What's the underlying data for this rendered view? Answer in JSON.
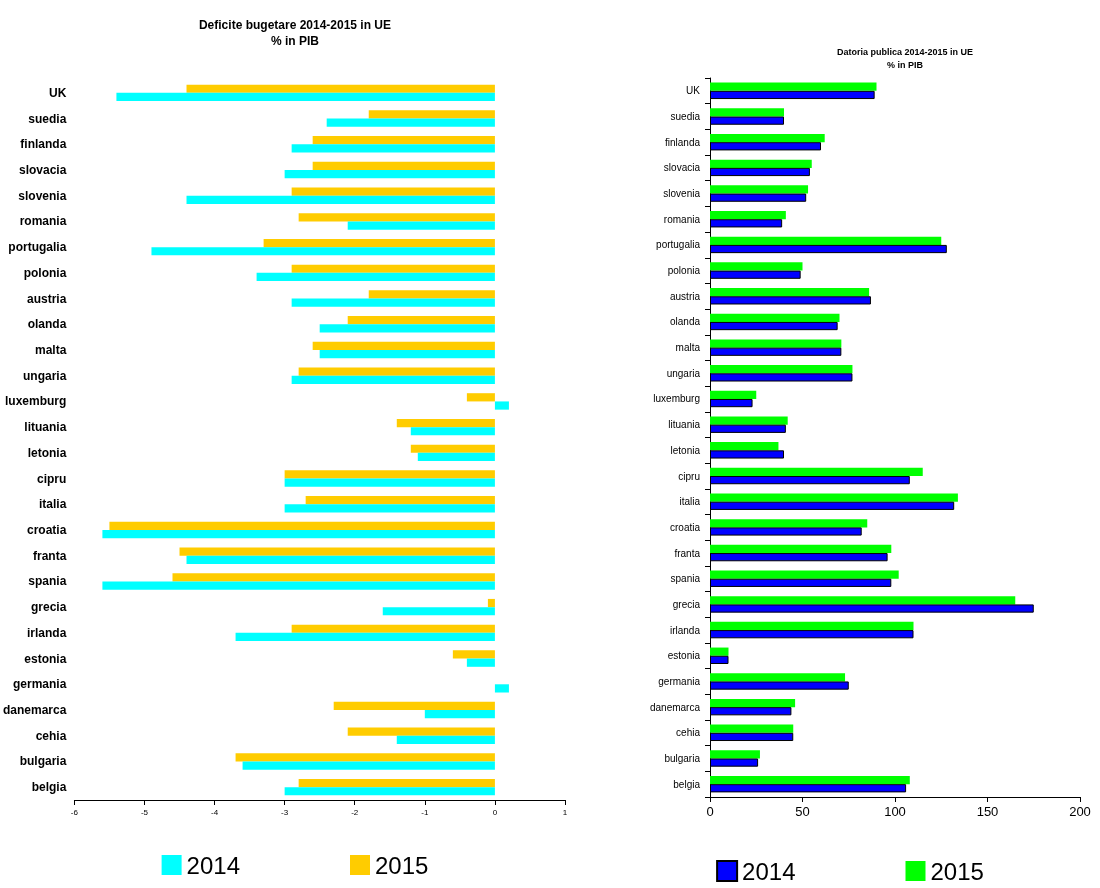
{
  "chart_data": [
    {
      "type": "bar",
      "orientation": "horizontal",
      "title": "Deficite bugetare 2014-2015 in UE",
      "subtitle": "% in PIB",
      "categories": [
        "UK",
        "suedia",
        "finlanda",
        "slovacia",
        "slovenia",
        "romania",
        "portugalia",
        "polonia",
        "austria",
        "olanda",
        "malta",
        "ungaria",
        "luxemburg",
        "lituania",
        "letonia",
        "cipru",
        "italia",
        "croatia",
        "franta",
        "spania",
        "grecia",
        "irlanda",
        "estonia",
        "germania",
        "danemarca",
        "cehia",
        "bulgaria",
        "belgia"
      ],
      "series": [
        {
          "name": "2014",
          "color": "#00ffff",
          "values": [
            -5.4,
            -2.4,
            -2.9,
            -3.0,
            -4.4,
            -2.1,
            -4.9,
            -3.4,
            -2.9,
            -2.5,
            -2.5,
            -2.9,
            0.2,
            -1.2,
            -1.1,
            -3.0,
            -3.0,
            -5.6,
            -4.4,
            -5.6,
            -1.6,
            -3.7,
            -0.4,
            0.2,
            -1.0,
            -1.4,
            -3.6,
            -3.0
          ]
        },
        {
          "name": "2015",
          "color": "#ffcc00",
          "values": [
            -4.4,
            -1.8,
            -2.6,
            -2.6,
            -2.9,
            -2.8,
            -3.3,
            -2.9,
            -1.8,
            -2.1,
            -2.6,
            -2.8,
            -0.4,
            -1.4,
            -1.2,
            -3.0,
            -2.7,
            -5.5,
            -4.5,
            -4.6,
            -0.1,
            -2.9,
            -0.6,
            0,
            -2.3,
            -2.1,
            -3.7,
            -2.8
          ]
        }
      ],
      "xlim": [
        -6,
        1
      ],
      "xticks": [
        -6,
        -5,
        -4,
        -3,
        -2,
        -1,
        0,
        1
      ],
      "grid": false,
      "legend": "bottom"
    },
    {
      "type": "bar",
      "orientation": "horizontal",
      "title": "Datoria publica 2014-2015 in UE",
      "subtitle": "% in PIB",
      "categories": [
        "UK",
        "suedia",
        "finlanda",
        "slovacia",
        "slovenia",
        "romania",
        "portugalia",
        "polonia",
        "austria",
        "olanda",
        "malta",
        "ungaria",
        "luxemburg",
        "lituania",
        "letonia",
        "cipru",
        "italia",
        "croatia",
        "franta",
        "spania",
        "grecia",
        "irlanda",
        "estonia",
        "germania",
        "danemarca",
        "cehia",
        "bulgaria",
        "belgia"
      ],
      "series": [
        {
          "name": "2014",
          "color": "#0000ff",
          "values": [
            89,
            40,
            60,
            54,
            52,
            39,
            128,
            49,
            87,
            69,
            71,
            77,
            23,
            41,
            40,
            108,
            132,
            82,
            96,
            98,
            175,
            110,
            10,
            75,
            44,
            45,
            26,
            106
          ]
        },
        {
          "name": "2015",
          "color": "#00ff00",
          "values": [
            90,
            40,
            62,
            55,
            53,
            41,
            125,
            50,
            86,
            70,
            71,
            77,
            25,
            42,
            37,
            115,
            134,
            85,
            98,
            102,
            165,
            110,
            10,
            73,
            46,
            45,
            27,
            108
          ]
        }
      ],
      "xlim": [
        0,
        200
      ],
      "xticks": [
        0,
        50,
        100,
        150,
        200
      ],
      "grid": false,
      "legend": "bottom"
    }
  ]
}
